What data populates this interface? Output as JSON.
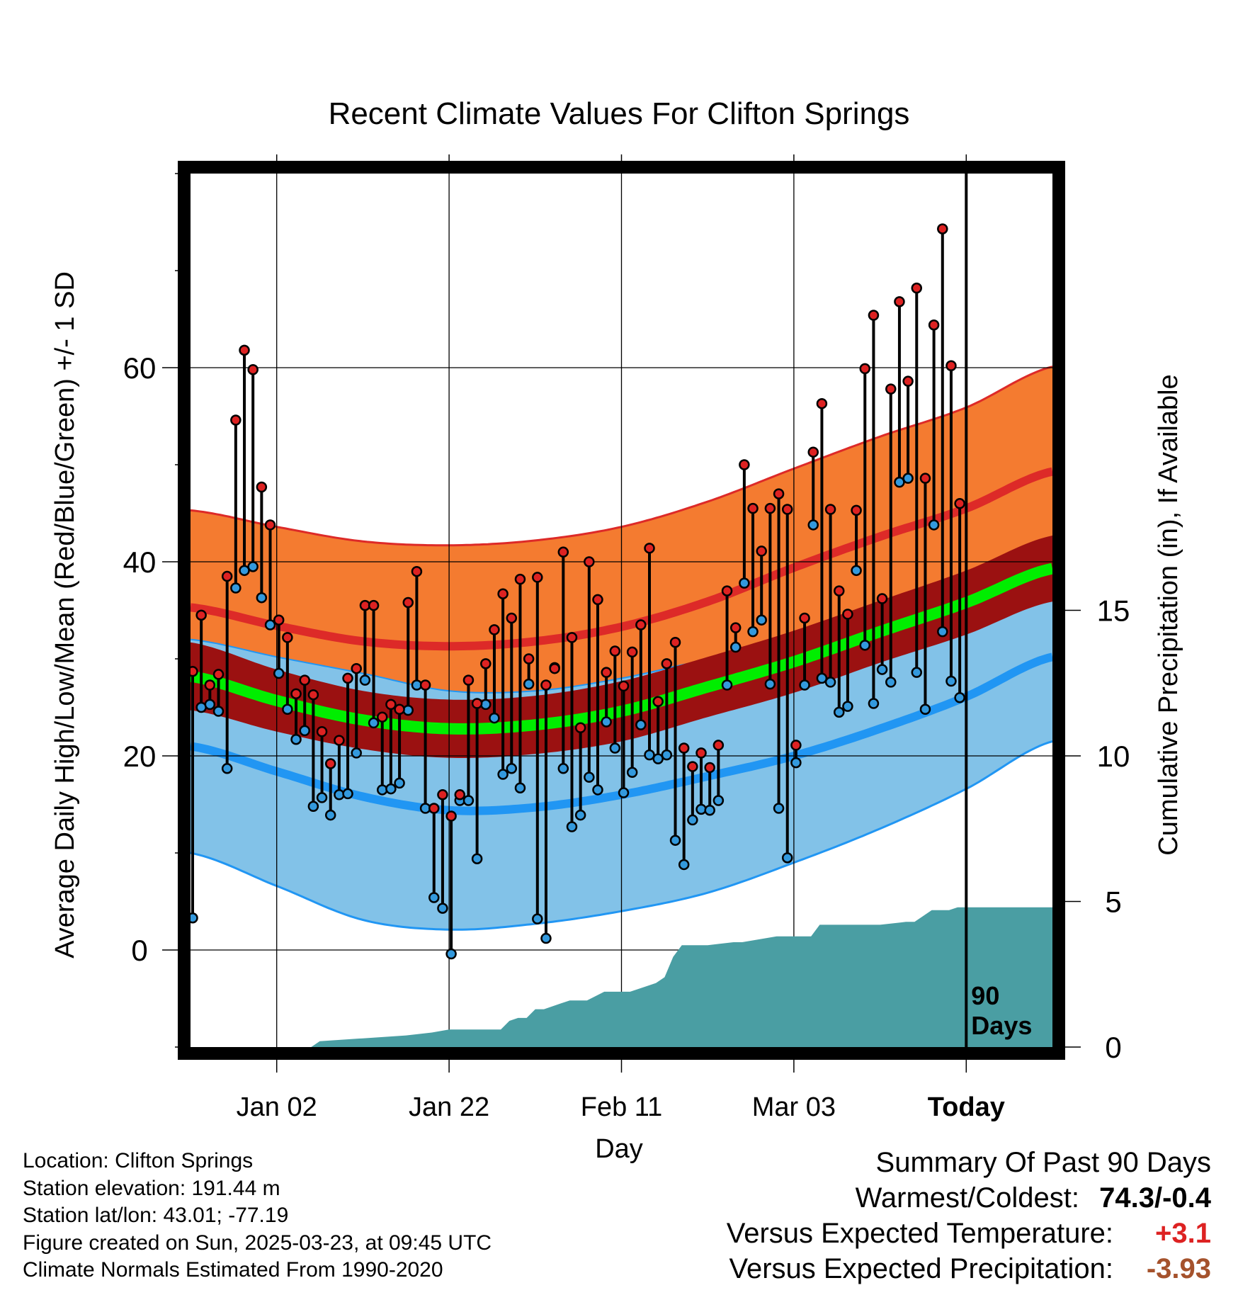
{
  "chart_data": {
    "type": "line",
    "title": "Recent Climate Values For Clifton Springs",
    "xlabel": "Day",
    "ylabel": "Average Daily High/Low/Mean (Red/Blue/Green) +/- 1 SD",
    "y2label": "Cumulative Precipitation (in), If Available",
    "x_ticks": [
      "Jan 02",
      "Jan 22",
      "Feb 11",
      "Mar 03",
      "Today"
    ],
    "x_tick_days": [
      10,
      30,
      50,
      70,
      90
    ],
    "xlim": [
      0,
      100
    ],
    "ylim": [
      -10,
      80
    ],
    "y_ticks": [
      "0",
      "20",
      "40",
      "60"
    ],
    "y_tick_values": [
      0,
      20,
      40,
      60
    ],
    "y_minor_step": 10,
    "y2lim": [
      0,
      30
    ],
    "y2_ticks": [
      "0",
      "5",
      "10",
      "15"
    ],
    "y2_tick_values": [
      0,
      5,
      10,
      15
    ],
    "today_label": "90\nDays",
    "today_label_lines": [
      "90",
      "Days"
    ],
    "grid": true,
    "normals": {
      "days": [
        0,
        10,
        20,
        30,
        40,
        50,
        60,
        70,
        80,
        90,
        100
      ],
      "high_mean": [
        35.3,
        33.4,
        31.8,
        31.3,
        31.8,
        33.3,
        35.9,
        39.4,
        42.6,
        45.5,
        49.3
      ],
      "high_sd": [
        10.0,
        10.2,
        10.3,
        10.4,
        10.4,
        10.3,
        10.3,
        10.2,
        10.3,
        10.4,
        10.8
      ],
      "low_mean": [
        21.0,
        18.4,
        15.8,
        14.4,
        14.7,
        16.0,
        17.9,
        20.0,
        22.8,
        26.1,
        30.2
      ],
      "low_sd": [
        11.0,
        11.8,
        12.7,
        12.3,
        12.0,
        12.0,
        12.0,
        11.0,
        10.3,
        9.5,
        8.7
      ],
      "mean_mean": [
        28.2,
        25.7,
        23.7,
        22.8,
        23.2,
        24.6,
        27.1,
        29.7,
        32.8,
        35.8,
        39.3
      ],
      "mean_sd": [
        3.5,
        3.2,
        3.0,
        3.0,
        3.0,
        3.1,
        3.1,
        3.2,
        3.2,
        3.3,
        3.4
      ]
    },
    "colors": {
      "high_band": "#f47b30",
      "high_line": "#dd2a28",
      "low_band": "#82c2e8",
      "low_line": "#2196f3",
      "mean_band": "#9b1111",
      "mean_line": "#00ee00",
      "precip": "#4a9ea3",
      "dot_high": "#dd2222",
      "dot_low": "#3399dd",
      "warm_value": "#dd2222",
      "precip_value": "#a5522c"
    },
    "series": [
      {
        "name": "High",
        "days": [
          0,
          1,
          2,
          3,
          4,
          5,
          6,
          7,
          8,
          9,
          10,
          11,
          12,
          13,
          14,
          15,
          16,
          17,
          18,
          19,
          20,
          21,
          22,
          23,
          24,
          25,
          26,
          27,
          28,
          29,
          30,
          31,
          32,
          33,
          34,
          35,
          36,
          37,
          38,
          39,
          40,
          41,
          42,
          43,
          44,
          45,
          46,
          47,
          48,
          49,
          50,
          51,
          52,
          53,
          54,
          55,
          56,
          57,
          58,
          59,
          60,
          61,
          62,
          63,
          64,
          65,
          66,
          67,
          68,
          69,
          70,
          71,
          72,
          73,
          74,
          75,
          76,
          77,
          78,
          79,
          80,
          81,
          82,
          83,
          84,
          85,
          86,
          87,
          88,
          89
        ],
        "values": [
          28.7,
          34.5,
          27.3,
          28.4,
          38.5,
          54.6,
          61.8,
          59.8,
          47.7,
          43.8,
          34.0,
          32.2,
          26.4,
          27.8,
          26.3,
          22.5,
          19.2,
          21.6,
          28.0,
          29.0,
          35.5,
          35.5,
          24.0,
          25.3,
          24.8,
          35.8,
          39.0,
          27.3,
          14.6,
          16.0,
          13.8,
          16.0,
          27.8,
          25.4,
          29.5,
          33.0,
          36.7,
          34.2,
          38.2,
          30.0,
          38.4,
          27.3,
          29.0,
          41.0,
          32.2,
          22.9,
          40.0,
          36.1,
          28.6,
          30.8,
          27.2,
          30.7,
          33.5,
          41.4,
          25.6,
          29.5,
          31.7,
          20.8,
          18.9,
          20.3,
          18.8,
          21.1,
          37.0,
          33.2,
          50.0,
          45.5,
          41.1,
          45.5,
          47.0,
          45.4,
          21.1,
          34.2,
          51.3,
          56.3,
          45.4,
          37.0,
          34.6,
          45.3,
          59.9,
          65.4,
          36.2,
          57.8,
          66.8,
          58.6,
          68.2,
          48.6,
          64.4,
          74.3,
          60.2,
          46.0
        ]
      },
      {
        "name": "Low",
        "days": [
          0,
          1,
          2,
          3,
          4,
          5,
          6,
          7,
          8,
          9,
          10,
          11,
          12,
          13,
          14,
          15,
          16,
          17,
          18,
          19,
          20,
          21,
          22,
          23,
          24,
          25,
          26,
          27,
          28,
          29,
          30,
          31,
          32,
          33,
          34,
          35,
          36,
          37,
          38,
          39,
          40,
          41,
          42,
          43,
          44,
          45,
          46,
          47,
          48,
          49,
          50,
          51,
          52,
          53,
          54,
          55,
          56,
          57,
          58,
          59,
          60,
          61,
          62,
          63,
          64,
          65,
          66,
          67,
          68,
          69,
          70,
          71,
          72,
          73,
          74,
          75,
          76,
          77,
          78,
          79,
          80,
          81,
          82,
          83,
          84,
          85,
          86,
          87,
          88,
          89
        ],
        "values": [
          3.3,
          25.0,
          25.3,
          24.6,
          18.7,
          37.3,
          39.1,
          39.5,
          36.3,
          33.5,
          28.5,
          24.8,
          21.7,
          22.6,
          14.8,
          15.7,
          13.9,
          16.0,
          16.1,
          20.3,
          27.8,
          23.4,
          16.5,
          16.6,
          17.2,
          24.7,
          27.3,
          14.6,
          5.4,
          4.3,
          -0.4,
          15.4,
          15.4,
          9.4,
          25.3,
          23.9,
          18.1,
          18.7,
          16.7,
          27.4,
          3.2,
          1.2,
          29.1,
          18.7,
          12.7,
          13.9,
          17.8,
          16.5,
          23.5,
          20.8,
          16.2,
          18.3,
          23.2,
          20.1,
          19.7,
          20.1,
          11.3,
          8.8,
          13.4,
          14.5,
          14.4,
          15.4,
          27.3,
          31.2,
          37.8,
          32.8,
          34.0,
          27.4,
          14.6,
          9.5,
          19.3,
          27.3,
          43.8,
          28.0,
          27.6,
          24.5,
          25.1,
          39.1,
          31.4,
          25.4,
          28.9,
          27.6,
          48.2,
          48.6,
          28.6,
          24.8,
          43.8,
          32.8,
          27.7,
          26.0
        ]
      }
    ],
    "precip_cumulative": {
      "days": [
        0,
        14,
        15,
        20,
        25,
        28,
        30,
        36,
        37,
        38,
        39,
        40,
        41,
        43,
        44,
        46,
        48,
        49,
        51,
        53,
        54,
        55,
        56,
        57,
        60,
        63,
        64,
        68,
        69,
        72,
        73,
        75,
        80,
        83,
        84,
        85,
        86,
        88,
        89,
        100
      ],
      "values": [
        0.0,
        0.0,
        0.2,
        0.3,
        0.4,
        0.5,
        0.6,
        0.6,
        0.9,
        1.0,
        1.0,
        1.3,
        1.3,
        1.5,
        1.6,
        1.6,
        1.9,
        1.9,
        1.9,
        2.1,
        2.2,
        2.4,
        3.1,
        3.5,
        3.5,
        3.6,
        3.6,
        3.8,
        3.8,
        3.8,
        4.2,
        4.2,
        4.2,
        4.3,
        4.3,
        4.5,
        4.7,
        4.7,
        4.8,
        4.8
      ]
    }
  },
  "footer": {
    "location": "Location: Clifton Springs",
    "elevation": "Station elevation: 191.44 m",
    "latlon": "Station lat/lon: 43.01; -77.19",
    "created": "Figure created on Sun, 2025-03-23, at 09:45 UTC",
    "normals": "Climate Normals Estimated From 1990-2020"
  },
  "summary": {
    "title": "Summary Of Past 90 Days",
    "warmest_coldest_label": "Warmest/Coldest:",
    "warmest_coldest_value": "74.3/-0.4",
    "temp_label": "Versus Expected Temperature:",
    "temp_value": "+3.1",
    "precip_label": "Versus Expected Precipitation:",
    "precip_value": "-3.93"
  }
}
